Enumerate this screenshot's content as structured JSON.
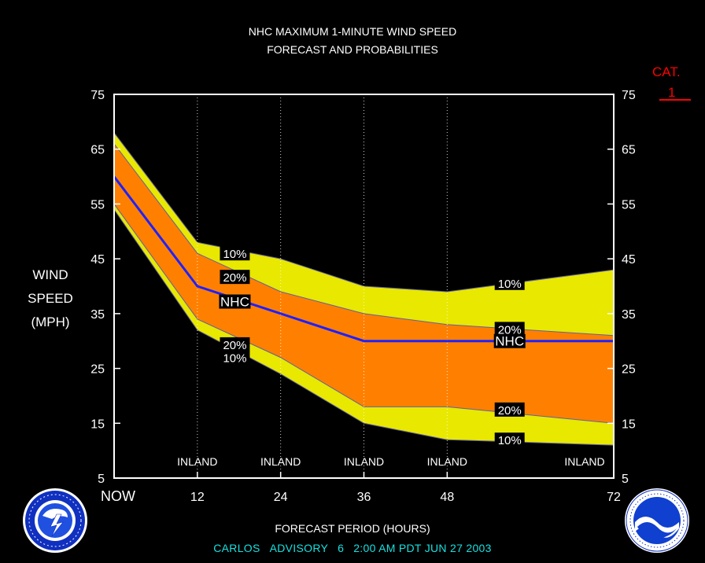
{
  "title_line1": "NHC MAXIMUM 1-MINUTE WIND SPEED",
  "title_line2": "FORECAST AND PROBABILITIES",
  "ylabel": [
    "WIND",
    "SPEED",
    "(MPH)"
  ],
  "category": {
    "line1": "CAT.",
    "line2": "1",
    "color": "#ff0000"
  },
  "xlabel": "FORECAST PERIOD (HOURS)",
  "advisory": {
    "storm": "CARLOS",
    "text": "ADVISORY",
    "number": "6",
    "time": "2:00 AM PDT JUN 27 2003"
  },
  "logos": [
    "nws-logo",
    "noaa-logo"
  ],
  "chart_data": {
    "type": "area",
    "xlim": [
      0,
      72
    ],
    "ylim": [
      5,
      75
    ],
    "x_ticks": [
      0,
      12,
      24,
      36,
      48,
      72
    ],
    "x_tick_labels": [
      "NOW",
      "12",
      "24",
      "36",
      "48",
      "72"
    ],
    "y_ticks": [
      5,
      15,
      25,
      35,
      45,
      55,
      65,
      75
    ],
    "grid_x_dotted": [
      12,
      24,
      36,
      48
    ],
    "inland_labels": [
      {
        "x": 12,
        "text": "INLAND"
      },
      {
        "x": 24,
        "text": "INLAND"
      },
      {
        "x": 36,
        "text": "INLAND"
      },
      {
        "x": 48,
        "text": "INLAND"
      },
      {
        "x": 72,
        "text": "INLAND"
      }
    ],
    "bands": [
      {
        "id": "band10",
        "color": "#e8e800",
        "upper": [
          [
            0,
            68
          ],
          [
            12,
            48
          ],
          [
            24,
            45
          ],
          [
            36,
            40
          ],
          [
            48,
            39
          ],
          [
            72,
            43
          ]
        ],
        "lower": [
          [
            0,
            54
          ],
          [
            12,
            32
          ],
          [
            24,
            24
          ],
          [
            36,
            15
          ],
          [
            48,
            12
          ],
          [
            72,
            11
          ]
        ]
      },
      {
        "id": "band20",
        "color": "#ff8000",
        "upper": [
          [
            0,
            66
          ],
          [
            12,
            46
          ],
          [
            24,
            39
          ],
          [
            36,
            35
          ],
          [
            48,
            33
          ],
          [
            72,
            31
          ]
        ],
        "lower": [
          [
            0,
            55
          ],
          [
            12,
            34
          ],
          [
            24,
            27
          ],
          [
            36,
            18
          ],
          [
            48,
            18
          ],
          [
            72,
            15
          ]
        ]
      }
    ],
    "forecast": {
      "name": "NHC",
      "color": "#2020ff",
      "points": [
        [
          0,
          60
        ],
        [
          12,
          40
        ],
        [
          24,
          35
        ],
        [
          36,
          30
        ],
        [
          48,
          30
        ],
        [
          72,
          30
        ]
      ]
    },
    "annotations": [
      {
        "text": "10%",
        "x": 17.4,
        "y": 46.0
      },
      {
        "text": "20%",
        "x": 17.4,
        "y": 41.7
      },
      {
        "text": "NHC",
        "x": 17.4,
        "y": 37.2
      },
      {
        "text": "20%",
        "x": 17.4,
        "y": 29.4
      },
      {
        "text": "10%",
        "x": 17.4,
        "y": 27.0
      },
      {
        "text": "10%",
        "x": 57.0,
        "y": 40.6
      },
      {
        "text": "20%",
        "x": 57.0,
        "y": 32.2
      },
      {
        "text": "NHC",
        "x": 57.0,
        "y": 30.0
      },
      {
        "text": "20%",
        "x": 57.0,
        "y": 17.5
      },
      {
        "text": "10%",
        "x": 57.0,
        "y": 12.0
      }
    ]
  }
}
